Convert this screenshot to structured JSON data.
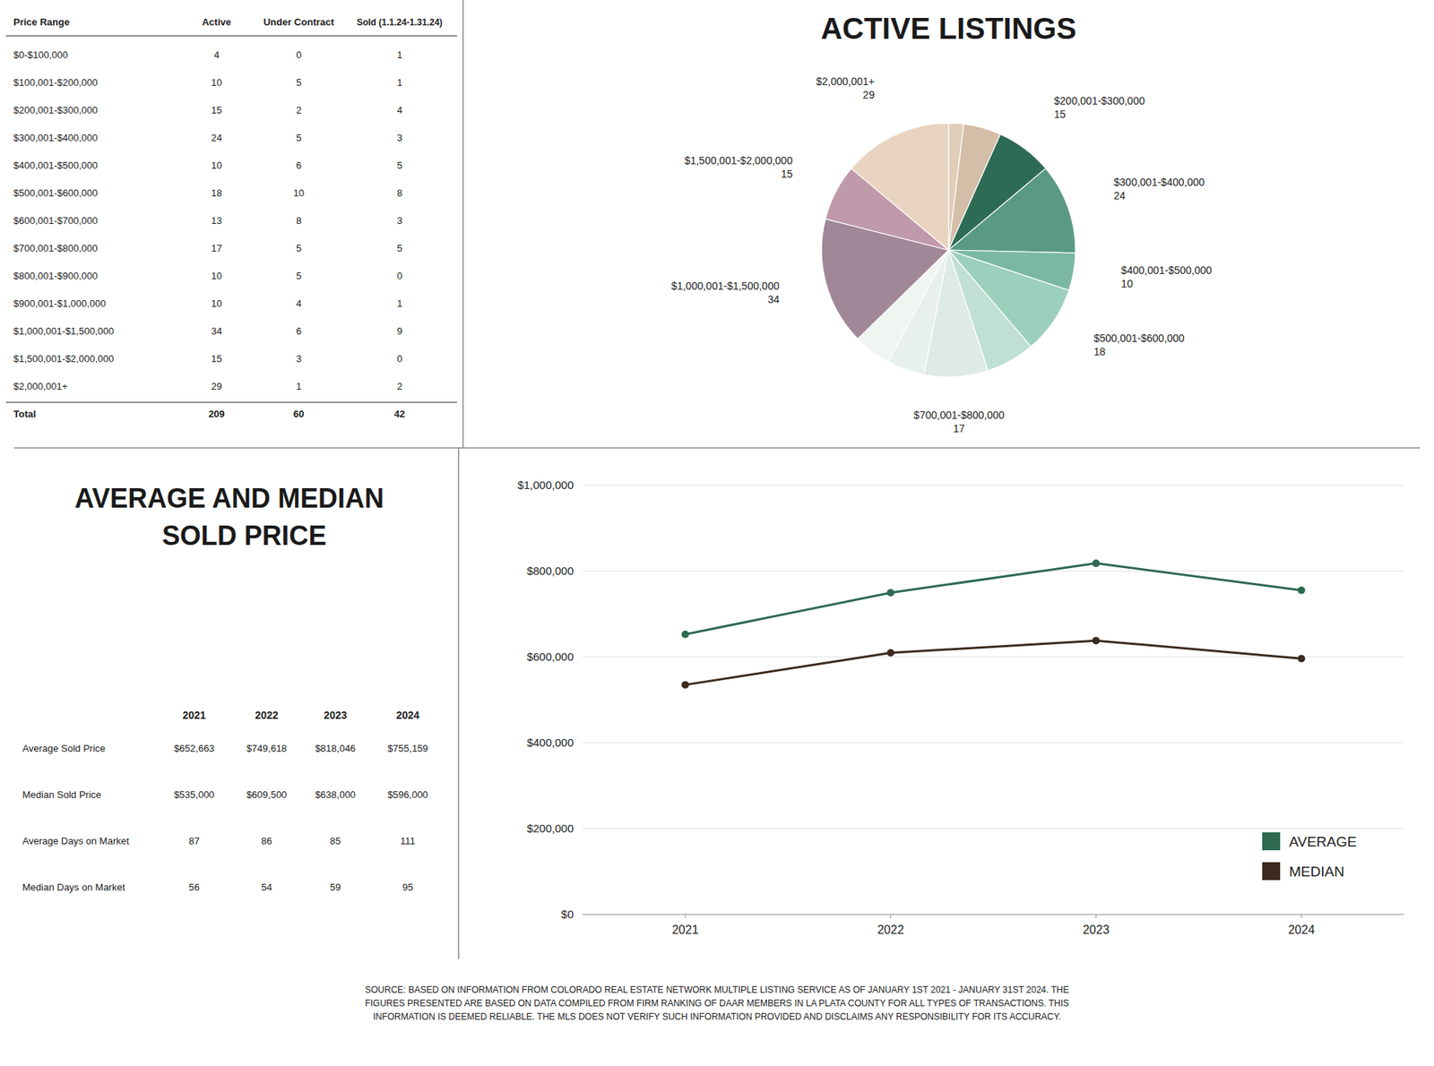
{
  "chart_data": [
    {
      "type": "table",
      "columns": [
        "Price Range",
        "Active",
        "Under Contract",
        "Sold (1.1.24-1.31.24)"
      ],
      "rows": [
        [
          "$0-$100,000",
          "4",
          "0",
          "1"
        ],
        [
          "$100,001-$200,000",
          "10",
          "5",
          "1"
        ],
        [
          "$200,001-$300,000",
          "15",
          "2",
          "4"
        ],
        [
          "$300,001-$400,000",
          "24",
          "5",
          "3"
        ],
        [
          "$400,001-$500,000",
          "10",
          "6",
          "5"
        ],
        [
          "$500,001-$600,000",
          "18",
          "10",
          "8"
        ],
        [
          "$600,001-$700,000",
          "13",
          "8",
          "3"
        ],
        [
          "$700,001-$800,000",
          "17",
          "5",
          "5"
        ],
        [
          "$800,001-$900,000",
          "10",
          "5",
          "0"
        ],
        [
          "$900,001-$1,000,000",
          "10",
          "4",
          "1"
        ],
        [
          "$1,000,001-$1,500,000",
          "34",
          "6",
          "9"
        ],
        [
          "$1,500,001-$2,000,000",
          "15",
          "3",
          "0"
        ],
        [
          "$2,000,001+",
          "29",
          "1",
          "2"
        ],
        [
          "Total",
          "209",
          "60",
          "42"
        ]
      ]
    },
    {
      "type": "pie",
      "title": "ACTIVE LISTINGS",
      "categories": [
        null,
        null,
        "$200,001-$300,000",
        "$300,001-$400,000",
        "$400,001-$500,000",
        "$500,001-$600,000",
        null,
        "$700,001-$800,000",
        null,
        null,
        "$1,000,001-$1,500,000",
        "$1,500,001-$2,000,000",
        "$2,000,001+"
      ],
      "values": [
        4,
        10,
        15,
        24,
        10,
        18,
        13,
        17,
        10,
        10,
        34,
        15,
        29
      ],
      "value_labels": [
        null,
        null,
        "15",
        "24",
        "10",
        "18",
        null,
        "17",
        null,
        null,
        "34",
        "15",
        "29"
      ],
      "data_labels": true,
      "colors": [
        "#e0ceb8",
        "#d4bea8",
        "#2d6b55",
        "#5a9a84",
        "#7ab8a4",
        "#9dd0bc",
        "#c0dfd5",
        "#ddeae5",
        "#e8f0ec",
        "#f0f5f2",
        "#a08898",
        "#c09aaa",
        "#e8d4c0"
      ]
    },
    {
      "type": "table",
      "columns": [
        "2021",
        "2022",
        "2023",
        "2024"
      ],
      "rows": [
        [
          "Average Sold Price",
          "$652,663",
          "$749,618",
          "$818,046",
          "$755,159"
        ],
        [
          "Median Sold Price",
          "$535,000",
          "$609,500",
          "$638,000",
          "$596,000"
        ],
        [
          "Average Days on Market",
          "87",
          "86",
          "85",
          "111"
        ],
        [
          "Median Days on Market",
          "56",
          "54",
          "59",
          "95"
        ]
      ]
    },
    {
      "type": "line",
      "title": "AVERAGE AND MEDIAN\n    SOLD PRICE",
      "x": [
        2021,
        2022,
        2023,
        2024
      ],
      "xlim": [
        2020.5,
        2024.5
      ],
      "xticks": [
        2021,
        2022,
        2023,
        2024
      ],
      "ylim": [
        0,
        1000000
      ],
      "yticks": [
        {
          "value": 0,
          "label": "$0"
        },
        {
          "value": 200000,
          "label": "$200,000"
        },
        {
          "value": 400000,
          "label": "$400,000"
        },
        {
          "value": 600000,
          "label": "$600,000"
        },
        {
          "value": 800000,
          "label": "$800,000"
        },
        {
          "value": 1000000,
          "label": "$1,000,000"
        }
      ],
      "grid": true,
      "legend": "lower right",
      "series": [
        {
          "name": "AVERAGE",
          "color": "#2d6a4f",
          "marker": "circle",
          "values": [
            652663,
            749618,
            818046,
            755159
          ]
        },
        {
          "name": "MEDIAN",
          "color": "#3d2b1f",
          "marker": "circle",
          "values": [
            535000,
            609500,
            638000,
            596000
          ]
        }
      ]
    }
  ],
  "footer": "SOURCE: BASED ON INFORMATION FROM COLORADO REAL ESTATE NETWORK MULTIPLE LISTING SERVICE AS OF JANUARY 1ST 2021 - JANUARY 31ST 2024. THE\nFIGURES PRESENTED ARE BASED ON DATA COMPILED FROM FIRM RANKING OF DAAR MEMBERS IN LA PLATA COUNTY FOR ALL TYPES OF TRANSACTIONS. THIS\nINFORMATION IS DEEMED RELIABLE. THE MLS DOES NOT VERIFY SUCH INFORMATION PROVIDED AND DISCLAIMS ANY RESPONSIBILITY FOR ITS ACCURACY."
}
